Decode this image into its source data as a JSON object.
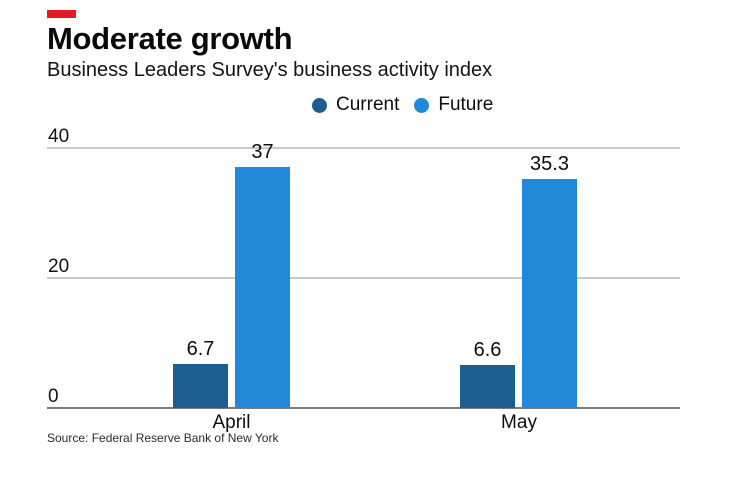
{
  "accent_color": "#e01b22",
  "chart_data": {
    "type": "bar",
    "title": "Moderate growth",
    "subtitle": "Business Leaders Survey's business activity index",
    "categories": [
      "April",
      "May"
    ],
    "series": [
      {
        "name": "Current",
        "color": "#1B5E8F",
        "values": [
          6.7,
          6.6
        ]
      },
      {
        "name": "Future",
        "color": "#2289D8",
        "values": [
          37,
          35.3
        ]
      }
    ],
    "ylim": [
      0,
      40
    ],
    "yticks": [
      40,
      20,
      0
    ],
    "grid": "horizontal",
    "legend_position": "top-center",
    "source": "Source: Federal Reserve Bank of New York"
  }
}
